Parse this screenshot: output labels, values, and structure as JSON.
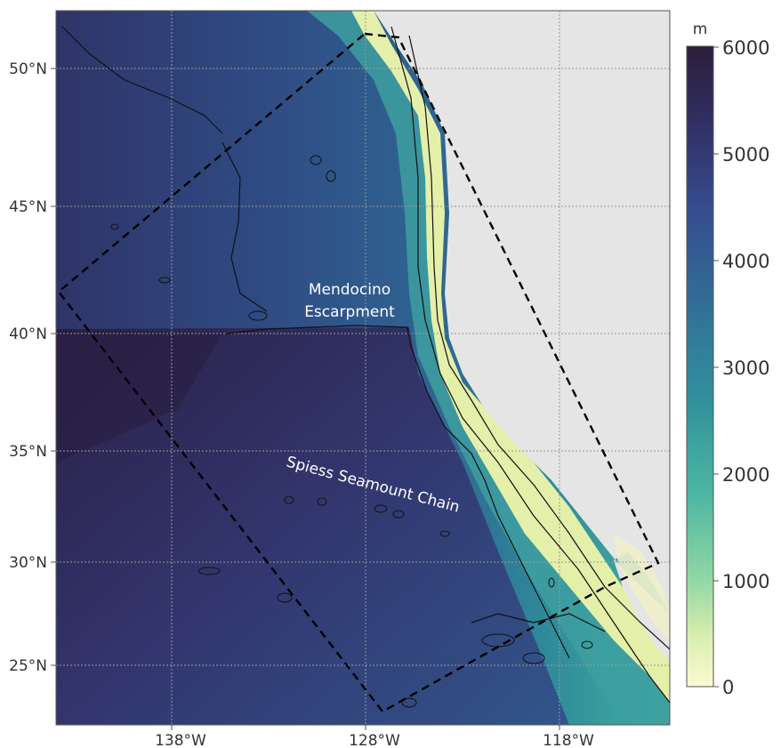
{
  "map": {
    "lat_ticks": [
      "50°N",
      "45°N",
      "40°N",
      "35°N",
      "30°N",
      "25°N"
    ],
    "lon_ticks": [
      "138°W",
      "128°W",
      "118°W"
    ],
    "annotations": {
      "mendocino_line1": "Mendocino",
      "mendocino_line2": "Escarpment",
      "spiess": "Spiess Seamount Chain"
    },
    "colors": {
      "land": "#e5e5e5",
      "shallow": "#f6f8c6",
      "mid": "#2e8f9b",
      "deep": "#2c1e3c"
    }
  },
  "colorbar": {
    "unit": "m",
    "ticks": [
      "6000",
      "5000",
      "4000",
      "3000",
      "2000",
      "1000",
      "0"
    ]
  }
}
